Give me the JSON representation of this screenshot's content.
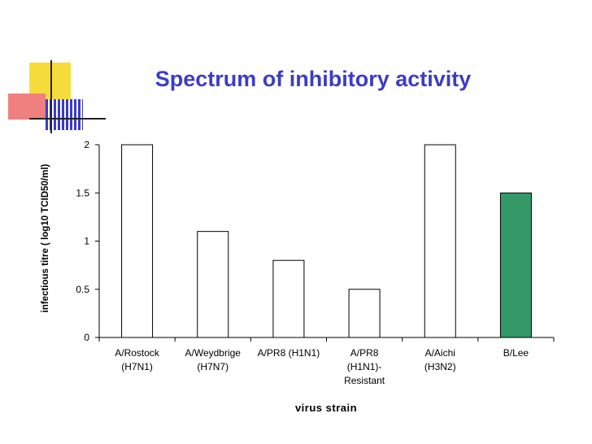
{
  "slide": {
    "title": "Spectrum of inhibitory activity"
  },
  "colors": {
    "title": "#3c3cc8",
    "deco_yellow": "#f6dc3a",
    "deco_red": "#f08080",
    "deco_blue": "#3a3acc",
    "bar_default": "#ffffff",
    "bar_highlight": "#339966"
  },
  "chart_data": {
    "type": "bar",
    "title": "",
    "xlabel": "virus strain",
    "ylabel": "infectious titre ( log10 TCID50/ml)",
    "ylim": [
      0,
      2
    ],
    "yticks": [
      "0",
      "0.5",
      "1",
      "1.5",
      "2"
    ],
    "categories": [
      [
        "A/Rostock",
        "(H7N1)"
      ],
      [
        "A/Weydbrige",
        "(H7N7)"
      ],
      [
        "A/PR8 (H1N1)"
      ],
      [
        "A/PR8",
        "(H1N1)-",
        "Resistant"
      ],
      [
        "A/Aichi",
        "(H3N2)"
      ],
      [
        "B/Lee"
      ]
    ],
    "values": [
      2,
      1.1,
      0.8,
      0.5,
      2,
      1.5
    ],
    "highlight_index": 5,
    "grid": false,
    "legend": "none"
  }
}
